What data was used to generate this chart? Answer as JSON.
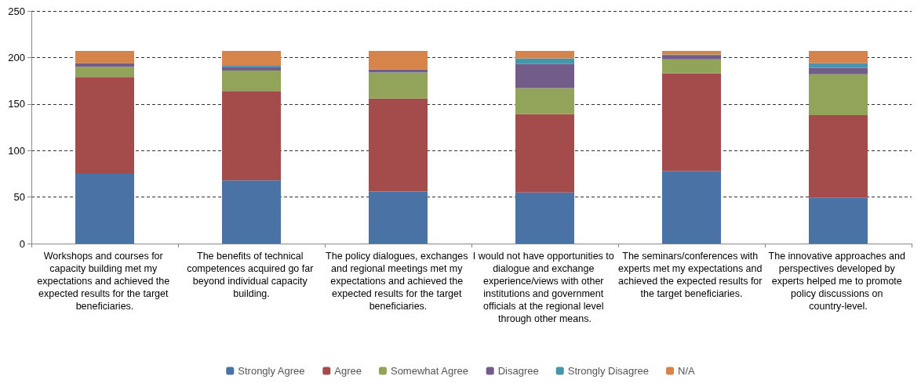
{
  "chart_data": {
    "type": "bar",
    "stacked": true,
    "categories": [
      "Workshops and courses for capacity building met my expectations and achieved the expected results for the target beneficiaries.",
      "The benefits of technical competences acquired go far beyond individual capacity building.",
      "The policy dialogues, exchanges and regional meetings met my expectations and achieved the expected results for the target beneficiaries.",
      "I would not have opportunities to dialogue and exchange experience/views with other institutions and government officials at the regional level through other means.",
      "The seminars/conferences with experts met my expectations and achieved the expected results for the target beneficiaries.",
      "The innovative approaches and perspectives developed by experts helped me to promote policy discussions on country-level."
    ],
    "series": [
      {
        "name": "Strongly Agree",
        "color": "#4a72a4",
        "values": [
          75,
          68,
          56,
          55,
          78,
          49
        ]
      },
      {
        "name": "Agree",
        "color": "#a44b4b",
        "values": [
          104,
          96,
          100,
          84,
          105,
          89
        ]
      },
      {
        "name": "Somewhat Agree",
        "color": "#92a45a",
        "values": [
          11,
          22,
          28,
          28,
          15,
          44
        ]
      },
      {
        "name": "Disagree",
        "color": "#725c8a",
        "values": [
          4,
          4,
          3,
          26,
          4,
          7
        ]
      },
      {
        "name": "Strongly Disagree",
        "color": "#4596aa",
        "values": [
          0,
          1,
          0,
          6,
          1,
          5
        ]
      },
      {
        "name": "N/A",
        "color": "#d6844a",
        "values": [
          13,
          16,
          20,
          8,
          4,
          13
        ]
      }
    ],
    "ylim": [
      0,
      250
    ],
    "yticks": [
      0,
      50,
      100,
      150,
      200,
      250
    ],
    "grid": "y",
    "legend": "bottom"
  }
}
